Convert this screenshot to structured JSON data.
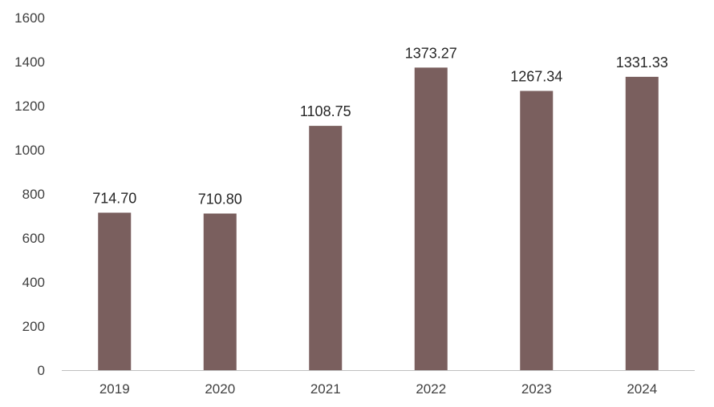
{
  "chart_data": {
    "type": "bar",
    "categories": [
      "2019",
      "2020",
      "2021",
      "2022",
      "2023",
      "2024"
    ],
    "values": [
      714.7,
      710.8,
      1108.75,
      1373.27,
      1267.34,
      1331.33
    ],
    "value_labels": [
      "714.70",
      "710.80",
      "1108.75",
      "1373.27",
      "1267.34",
      "1331.33"
    ],
    "title": "",
    "xlabel": "",
    "ylabel": "",
    "ylim": [
      0,
      1600
    ],
    "yticks": [
      0,
      200,
      400,
      600,
      800,
      1000,
      1200,
      1400,
      1600
    ],
    "grid": false,
    "legend": "none",
    "bar_color": "#7a5f5e",
    "axis_color": "#bfbfbf"
  }
}
